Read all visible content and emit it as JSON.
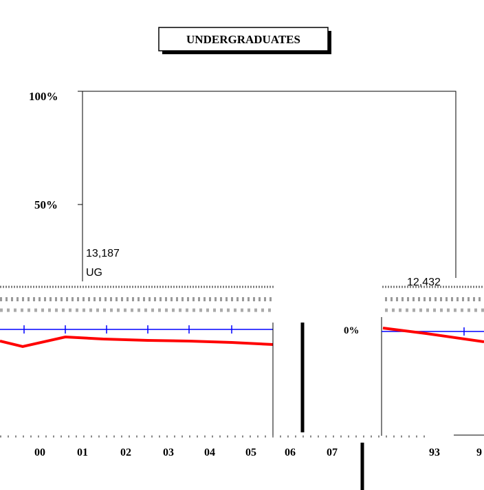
{
  "header": {
    "title": "UNDERGRADUATES"
  },
  "axis": {
    "labels": [
      "100%",
      "50%",
      "0%"
    ]
  },
  "annotations": {
    "left_count": "13,187",
    "left_label": "UG",
    "right_count": "12,432"
  },
  "x_labels": [
    "00",
    "01",
    "02",
    "03",
    "04",
    "05",
    "06",
    "07",
    "93",
    "9"
  ]
}
